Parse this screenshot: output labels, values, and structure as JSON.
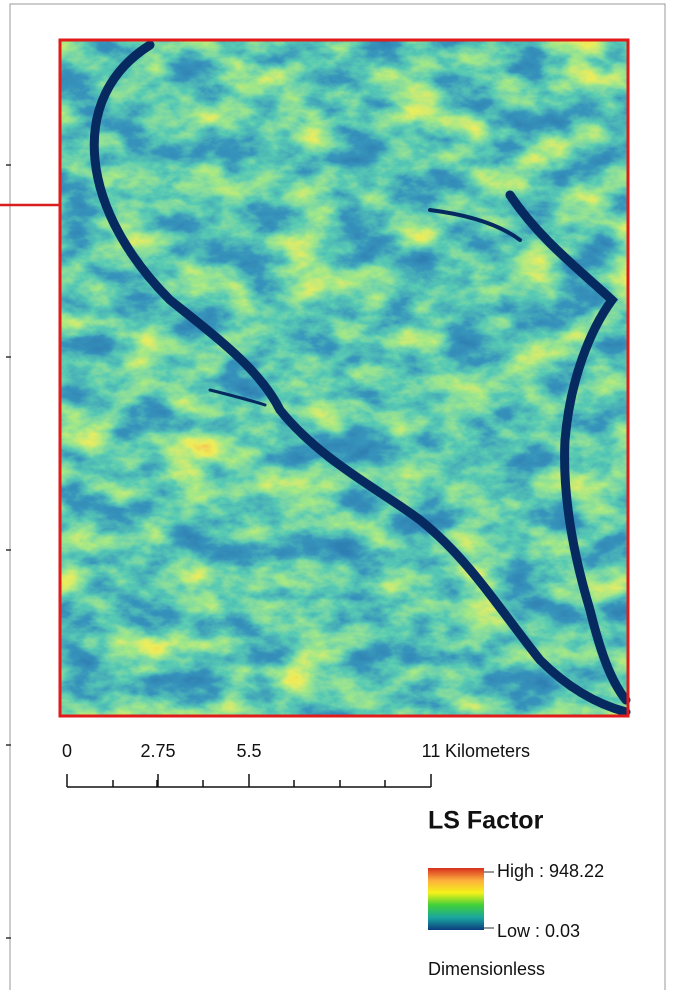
{
  "scalebar": {
    "ticks": [
      0,
      2.75,
      5.5,
      11
    ],
    "unit": "Kilometers"
  },
  "legend": {
    "title": "LS Factor",
    "high": "High : 948.22",
    "low": "Low : 0.03",
    "units": "Dimensionless"
  }
}
